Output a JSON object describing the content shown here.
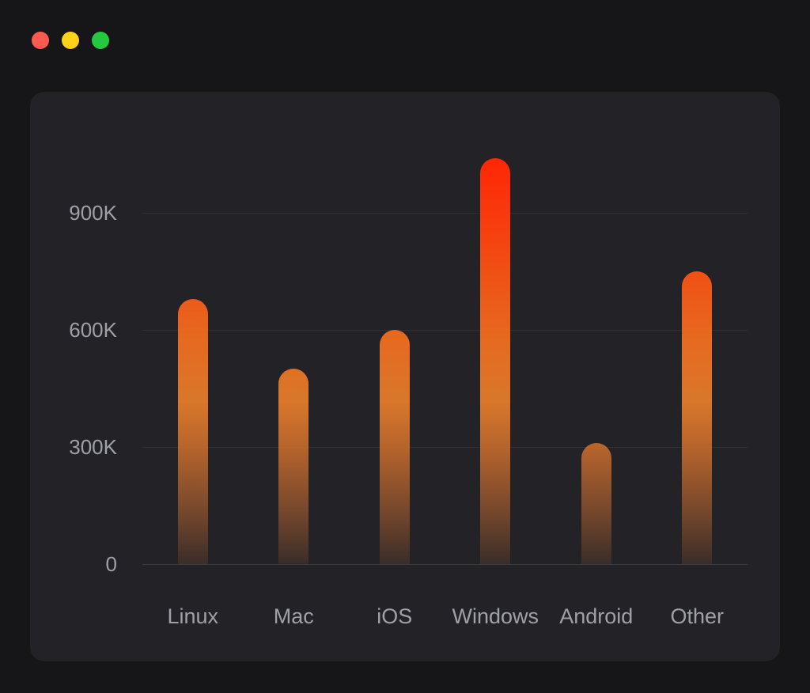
{
  "window": {
    "controls": [
      {
        "name": "close",
        "color": "#ff5a52"
      },
      {
        "name": "minimize",
        "color": "#fdd219"
      },
      {
        "name": "maximize",
        "color": "#24c93f"
      }
    ]
  },
  "chart_data": {
    "type": "bar",
    "categories": [
      "Linux",
      "Mac",
      "iOS",
      "Windows",
      "Android",
      "Other"
    ],
    "values": [
      680000,
      500000,
      600000,
      1040000,
      310000,
      750000
    ],
    "yticks": [
      {
        "value": 0,
        "label": "0"
      },
      {
        "value": 300000,
        "label": "300K"
      },
      {
        "value": 600000,
        "label": "600K"
      },
      {
        "value": 900000,
        "label": "900K"
      }
    ],
    "ylim": [
      0,
      1060000
    ],
    "xlabel": "",
    "ylabel": "",
    "title": "",
    "grid": "horizontal",
    "legend": "none",
    "bar_gradient": {
      "top": "#ff2606",
      "middle": "#e66a20",
      "bottom": "rgba(141,80,45,0.22)"
    }
  },
  "colors": {
    "page_bg": "#161618",
    "panel_bg": "#232327",
    "gridline": "#2f2f34",
    "axis_label": "#9fa0a8"
  }
}
